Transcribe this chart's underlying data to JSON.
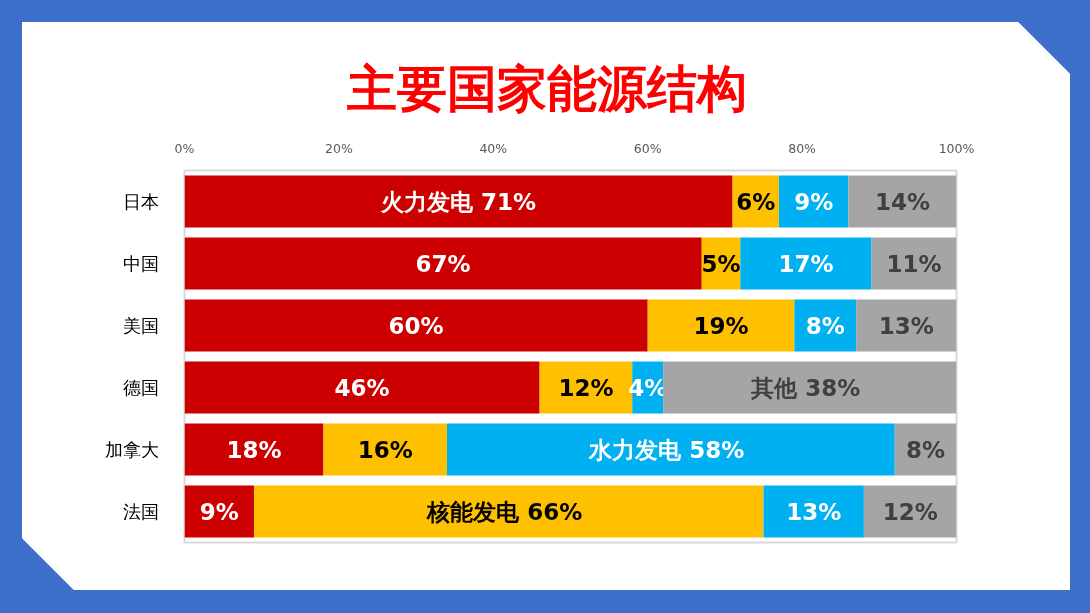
{
  "chart_data": {
    "type": "bar",
    "orientation": "horizontal",
    "stacked": true,
    "title": "主要国家能源结构",
    "categories": [
      "日本",
      "中国",
      "美国",
      "德国",
      "加拿大",
      "法国"
    ],
    "series": [
      {
        "color": "#cc0000",
        "values": [
          71,
          67,
          60,
          46,
          18,
          9
        ],
        "value_labels": [
          "火力发电 71%",
          "67%",
          "60%",
          "46%",
          "18%",
          "9%"
        ]
      },
      {
        "color": "#ffc000",
        "values": [
          6,
          5,
          19,
          12,
          16,
          66
        ],
        "value_labels": [
          "6%",
          "5%",
          "19%",
          "12%",
          "16%",
          "核能发电  66%"
        ]
      },
      {
        "color": "#00b0f0",
        "values": [
          9,
          17,
          8,
          4,
          58,
          13
        ],
        "value_labels": [
          "9%",
          "17%",
          "8%",
          "4%",
          "水力发电  58%",
          "13%"
        ]
      },
      {
        "color": "#a5a5a5",
        "values": [
          14,
          11,
          13,
          38,
          8,
          12
        ],
        "value_labels": [
          "14%",
          "11%",
          "13%",
          "其他  38%",
          "8%",
          "12%"
        ]
      }
    ],
    "xlim": [
      0,
      100
    ],
    "xticks": [
      {
        "value": 0,
        "label": "0%"
      },
      {
        "value": 20,
        "label": "20%"
      },
      {
        "value": 40,
        "label": "40%"
      },
      {
        "value": 60,
        "label": "60%"
      },
      {
        "value": 80,
        "label": "80%"
      },
      {
        "value": 100,
        "label": "100%"
      }
    ]
  }
}
